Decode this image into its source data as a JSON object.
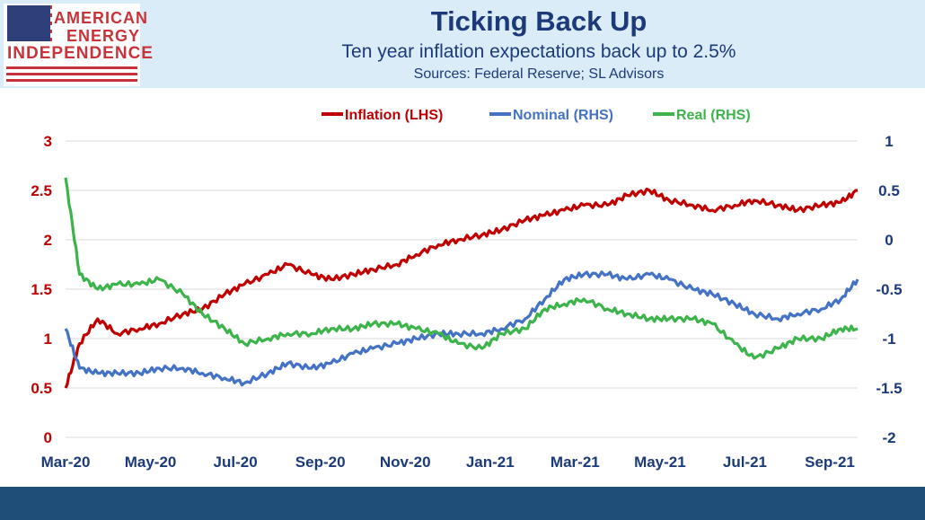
{
  "header": {
    "logo_lines": [
      "AMERICAN",
      "ENERGY",
      "INDEPENDENCE"
    ],
    "title": "Ticking Back Up",
    "subtitle": "Ten year inflation expectations back up to 2.5%",
    "sources": "Sources: Federal Reserve; SL Advisors"
  },
  "colors": {
    "inflation": "#c00000",
    "nominal": "#4472c4",
    "real": "#3cb44b",
    "left_axis": "#c00000",
    "right_axis": "#1c3a7a",
    "title": "#1c3a7a",
    "footer": "#1f4e79",
    "header_bg": "#d9ecf8"
  },
  "chart_data": {
    "type": "line",
    "legend_position": "top",
    "grid": true,
    "x_ticks": [
      "Mar-20",
      "May-20",
      "Jul-20",
      "Sep-20",
      "Nov-20",
      "Jan-21",
      "Mar-21",
      "May-21",
      "Jul-21",
      "Sep-21"
    ],
    "y_left": {
      "range": [
        0,
        3
      ],
      "ticks": [
        "0",
        "0.5",
        "1",
        "1.5",
        "2",
        "2.5",
        "3"
      ]
    },
    "y_right": {
      "range": [
        -2,
        1
      ],
      "ticks": [
        "-2",
        "-1.5",
        "-1",
        "-0.5",
        "0",
        "0.5",
        "1"
      ]
    },
    "x": [
      "2020-03-09",
      "2020-03-19",
      "2020-04-01",
      "2020-04-15",
      "2020-05-01",
      "2020-05-15",
      "2020-06-01",
      "2020-06-15",
      "2020-07-01",
      "2020-07-15",
      "2020-08-01",
      "2020-08-15",
      "2020-09-01",
      "2020-09-15",
      "2020-10-01",
      "2020-10-15",
      "2020-11-01",
      "2020-11-15",
      "2020-12-01",
      "2020-12-15",
      "2021-01-01",
      "2021-01-15",
      "2021-02-01",
      "2021-02-15",
      "2021-03-01",
      "2021-03-15",
      "2021-04-01",
      "2021-04-15",
      "2021-05-01",
      "2021-05-15",
      "2021-06-01",
      "2021-06-15",
      "2021-07-01",
      "2021-07-15",
      "2021-08-01",
      "2021-08-15",
      "2021-09-01",
      "2021-09-15",
      "2021-09-27"
    ],
    "series": [
      {
        "name": "Inflation (LHS)",
        "axis": "left",
        "values": [
          0.5,
          0.95,
          1.2,
          1.05,
          1.1,
          1.15,
          1.25,
          1.3,
          1.45,
          1.55,
          1.65,
          1.75,
          1.65,
          1.6,
          1.65,
          1.7,
          1.75,
          1.85,
          1.95,
          2.0,
          2.05,
          2.1,
          2.2,
          2.25,
          2.3,
          2.35,
          2.35,
          2.45,
          2.5,
          2.4,
          2.35,
          2.3,
          2.35,
          2.4,
          2.35,
          2.3,
          2.35,
          2.38,
          2.5
        ]
      },
      {
        "name": "Nominal (RHS)",
        "axis": "right",
        "values": [
          -0.9,
          -1.3,
          -1.35,
          -1.35,
          -1.35,
          -1.3,
          -1.3,
          -1.35,
          -1.4,
          -1.45,
          -1.35,
          -1.25,
          -1.3,
          -1.25,
          -1.15,
          -1.1,
          -1.05,
          -1.0,
          -0.95,
          -0.95,
          -0.95,
          -0.9,
          -0.8,
          -0.6,
          -0.4,
          -0.35,
          -0.35,
          -0.4,
          -0.35,
          -0.4,
          -0.5,
          -0.55,
          -0.65,
          -0.75,
          -0.8,
          -0.75,
          -0.7,
          -0.6,
          -0.4
        ]
      },
      {
        "name": "Real (RHS)",
        "axis": "right",
        "values": [
          0.63,
          -0.35,
          -0.5,
          -0.45,
          -0.45,
          -0.4,
          -0.55,
          -0.75,
          -0.9,
          -1.05,
          -1.0,
          -0.95,
          -0.95,
          -0.9,
          -0.9,
          -0.85,
          -0.85,
          -0.9,
          -0.95,
          -1.05,
          -1.1,
          -0.95,
          -0.9,
          -0.7,
          -0.65,
          -0.6,
          -0.7,
          -0.75,
          -0.8,
          -0.8,
          -0.8,
          -0.85,
          -1.05,
          -1.2,
          -1.1,
          -1.0,
          -1.0,
          -0.9,
          -0.9
        ]
      }
    ]
  }
}
